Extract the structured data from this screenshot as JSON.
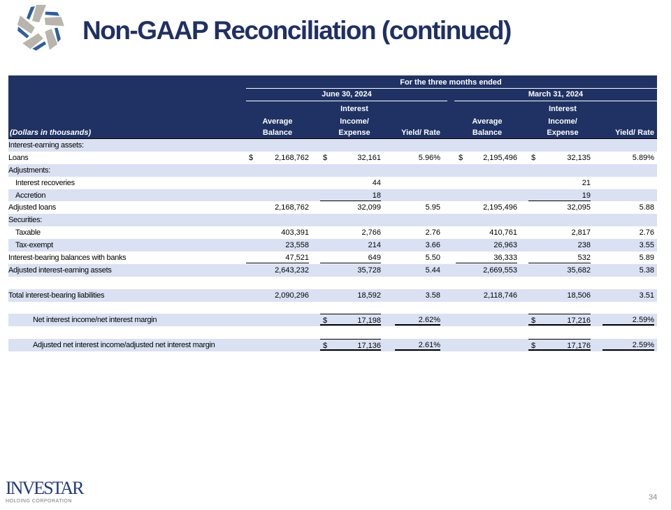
{
  "title": "Non-GAAP Reconciliation (continued)",
  "colors": {
    "header_bg": "#1f3263",
    "shaded_row": "#d9e1f2",
    "title": "#1f3064"
  },
  "header": {
    "period_group": "For the three months ended",
    "periods": [
      "June 30, 2024",
      "March 31, 2024"
    ],
    "units_label": "(Dollars in thousands)",
    "col_avg_balance": [
      "Average",
      "Balance"
    ],
    "col_interest": [
      "Interest",
      "Income/",
      "Expense"
    ],
    "col_yield": "Yield/ Rate"
  },
  "rows": [
    {
      "label": "Interest-earning assets:",
      "indent": 0,
      "cells": [
        "",
        "",
        "",
        "",
        "",
        ""
      ]
    },
    {
      "label": "Loans",
      "indent": 0,
      "dollar": [
        true,
        true,
        false,
        true,
        true,
        false
      ],
      "cells": [
        "2,168,762",
        "32,161",
        "5.96%",
        "2,195,496",
        "32,135",
        "5.89%"
      ]
    },
    {
      "label": "Adjustments:",
      "indent": 0,
      "cells": [
        "",
        "",
        "",
        "",
        "",
        ""
      ]
    },
    {
      "label": "Interest recoveries",
      "indent": 1,
      "cells": [
        "",
        "44",
        "",
        "",
        "21",
        ""
      ]
    },
    {
      "label": "Accretion",
      "indent": 1,
      "cells": [
        "",
        "18",
        "",
        "",
        "19",
        ""
      ]
    },
    {
      "label": "Adjusted loans",
      "indent": 0,
      "cells": [
        "2,168,762",
        "32,099",
        "5.95",
        "2,195,496",
        "32,095",
        "5.88"
      ]
    },
    {
      "label": "Securities:",
      "indent": 0,
      "cells": [
        "",
        "",
        "",
        "",
        "",
        ""
      ]
    },
    {
      "label": "Taxable",
      "indent": 1,
      "cells": [
        "403,391",
        "2,766",
        "2.76",
        "410,761",
        "2,817",
        "2.76"
      ]
    },
    {
      "label": "Tax-exempt",
      "indent": 1,
      "cells": [
        "23,558",
        "214",
        "3.66",
        "26,963",
        "238",
        "3.55"
      ]
    },
    {
      "label": "Interest-bearing balances with banks",
      "indent": 0,
      "cells": [
        "47,521",
        "649",
        "5.50",
        "36,333",
        "532",
        "5.89"
      ]
    },
    {
      "label": "Adjusted interest-earning assets",
      "indent": 0,
      "cells": [
        "2,643,232",
        "35,728",
        "5.44",
        "2,669,553",
        "35,682",
        "5.38"
      ]
    },
    {
      "label": "",
      "indent": 0,
      "cells": [
        "",
        "",
        "",
        "",
        "",
        ""
      ]
    },
    {
      "label": "Total interest-bearing liabilities",
      "indent": 0,
      "cells": [
        "2,090,296",
        "18,592",
        "3.58",
        "2,118,746",
        "18,506",
        "3.51"
      ]
    },
    {
      "label": "",
      "indent": 0,
      "cells": [
        "",
        "",
        "",
        "",
        "",
        ""
      ]
    },
    {
      "label": "Net interest income/net interest margin",
      "indent": 2,
      "dollar": [
        false,
        true,
        false,
        false,
        true,
        false
      ],
      "cells": [
        "",
        "17,198",
        "2.62%",
        "",
        "17,216",
        "2.59%"
      ]
    },
    {
      "label": "",
      "indent": 0,
      "cells": [
        "",
        "",
        "",
        "",
        "",
        ""
      ]
    },
    {
      "label": "Adjusted net interest income/adjusted net interest margin",
      "indent": 2,
      "dollar": [
        false,
        true,
        false,
        false,
        true,
        false
      ],
      "cells": [
        "",
        "17,136",
        "2.61%",
        "",
        "17,176",
        "2.59%"
      ]
    }
  ],
  "dollar_sign": "$",
  "footer": {
    "logo_text": "INVESTAR",
    "logo_subtext": "HOLDING CORPORATION",
    "page_number": "34"
  }
}
